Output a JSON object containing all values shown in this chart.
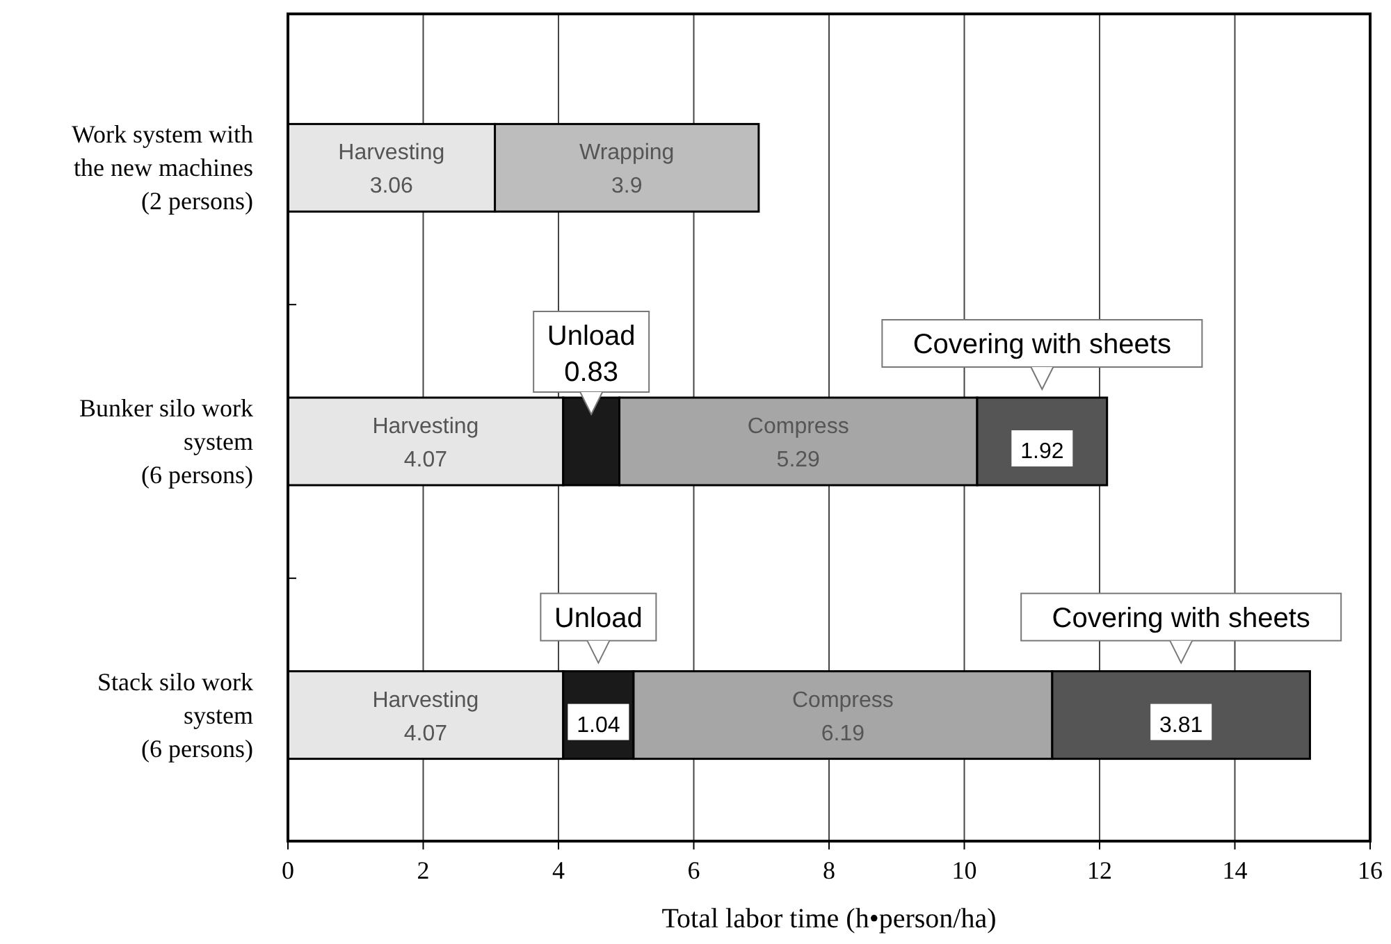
{
  "chart_data": {
    "type": "bar",
    "orientation": "horizontal",
    "stacked": true,
    "data_labels": true,
    "grid": "x",
    "legend": false,
    "categories": [
      "Work system with\nthe new machines\n(2 persons)",
      "Bunker silo work\nsystem\n(6 persons)",
      "Stack silo work\nsystem\n(6 persons)"
    ],
    "series": [
      {
        "name": "Harvesting",
        "color": "#e6e6e6",
        "values": [
          3.06,
          4.07,
          4.07
        ]
      },
      {
        "name": "Wrapping",
        "color": "#bdbdbd",
        "values": [
          3.9,
          null,
          null
        ]
      },
      {
        "name": "Unload",
        "color": "#1a1a1a",
        "values": [
          null,
          0.83,
          1.04
        ]
      },
      {
        "name": "Compress",
        "color": "#a6a6a6",
        "values": [
          null,
          5.29,
          6.19
        ]
      },
      {
        "name": "Covering with sheets",
        "color": "#555555",
        "values": [
          null,
          1.92,
          3.81
        ]
      }
    ],
    "xlim": [
      0,
      16
    ],
    "xticks": [
      0,
      2,
      4,
      6,
      8,
      10,
      12,
      14,
      16
    ],
    "xlabel": "Total labor time (h•person/ha)"
  }
}
